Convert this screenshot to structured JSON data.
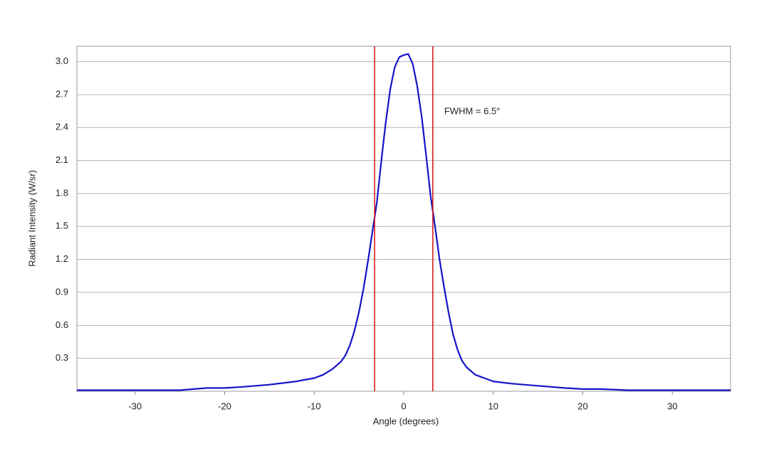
{
  "chart_data": {
    "type": "line",
    "x_label": "Angle (degrees)",
    "y_label": "Radiant Intensity (W/sr)",
    "annotation": "FWHM = 6.5°",
    "x": [
      -36.5,
      -30,
      -25,
      -22,
      -20,
      -18,
      -15,
      -12,
      -10,
      -9,
      -8,
      -7,
      -6.5,
      -6,
      -5.5,
      -5,
      -4.5,
      -4,
      -3.5,
      -3,
      -2.5,
      -2,
      -1.5,
      -1,
      -0.5,
      0,
      0.5,
      1,
      1.5,
      2,
      2.5,
      3,
      3.5,
      4,
      4.5,
      5,
      5.5,
      6,
      6.5,
      7,
      8,
      9,
      10,
      12,
      15,
      18,
      20,
      22,
      25,
      30,
      36.5
    ],
    "values": [
      0.01,
      0.01,
      0.01,
      0.03,
      0.03,
      0.04,
      0.06,
      0.09,
      0.12,
      0.15,
      0.2,
      0.27,
      0.33,
      0.42,
      0.55,
      0.72,
      0.93,
      1.18,
      1.45,
      1.72,
      2.1,
      2.45,
      2.75,
      2.95,
      3.04,
      3.06,
      3.07,
      2.98,
      2.78,
      2.5,
      2.15,
      1.78,
      1.5,
      1.2,
      0.95,
      0.72,
      0.52,
      0.38,
      0.28,
      0.22,
      0.15,
      0.12,
      0.09,
      0.07,
      0.05,
      0.03,
      0.02,
      0.02,
      0.01,
      0.01,
      0.01
    ],
    "color": "#1414c8",
    "vlines": [
      -3.25,
      3.25
    ],
    "vline_color": "#d21e1e",
    "xlim": [
      -36.5,
      36.5
    ],
    "ylim": [
      0,
      3.14
    ],
    "xticks": [
      -30,
      -20,
      -10,
      0,
      10,
      20,
      30
    ],
    "yticks": [
      0.3,
      0.6,
      0.9,
      1.2,
      1.5,
      1.8,
      2.1,
      2.4,
      2.7,
      {
        "value": 3,
        "label": "3.0"
      }
    ],
    "grid": true
  }
}
